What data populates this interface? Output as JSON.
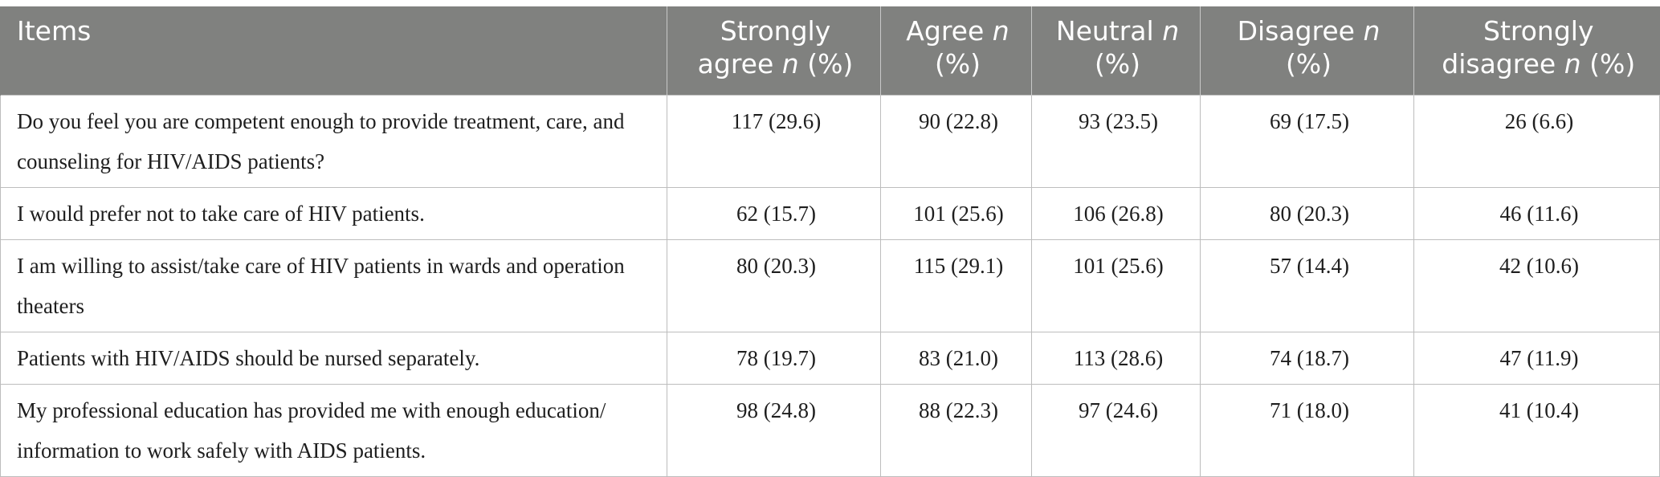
{
  "table": {
    "headers": [
      {
        "pre": "Items",
        "n": "",
        "post": ""
      },
      {
        "pre": "Strongly agree ",
        "n": "n",
        "post": " (%)"
      },
      {
        "pre": "Agree ",
        "n": "n",
        "post": " (%)"
      },
      {
        "pre": "Neutral ",
        "n": "n",
        "post": " (%)"
      },
      {
        "pre": "Disagree ",
        "n": "n",
        "post": " (%)"
      },
      {
        "pre": "Strongly disagree ",
        "n": "n",
        "post": " (%)"
      }
    ],
    "rows": [
      [
        "Do you feel you are competent enough to provide treatment, care, and counseling for HIV/AIDS patients?",
        "117 (29.6)",
        "90 (22.8)",
        "93 (23.5)",
        "69 (17.5)",
        "26 (6.6)"
      ],
      [
        "I would prefer not to take care of HIV patients.",
        "62 (15.7)",
        "101 (25.6)",
        "106 (26.8)",
        "80 (20.3)",
        "46 (11.6)"
      ],
      [
        "I am willing to assist/take care of HIV patients in wards and operation theaters",
        "80 (20.3)",
        "115 (29.1)",
        "101 (25.6)",
        "57 (14.4)",
        "42 (10.6)"
      ],
      [
        "Patients with HIV/AIDS should be nursed separately.",
        "78 (19.7)",
        "83 (21.0)",
        "113 (28.6)",
        "74 (18.7)",
        "47 (11.9)"
      ],
      [
        "My professional education has provided me with enough education/ information to work safely with AIDS patients.",
        "98 (24.8)",
        "88 (22.3)",
        "97 (24.6)",
        "71 (18.0)",
        "41 (10.4)"
      ]
    ]
  }
}
